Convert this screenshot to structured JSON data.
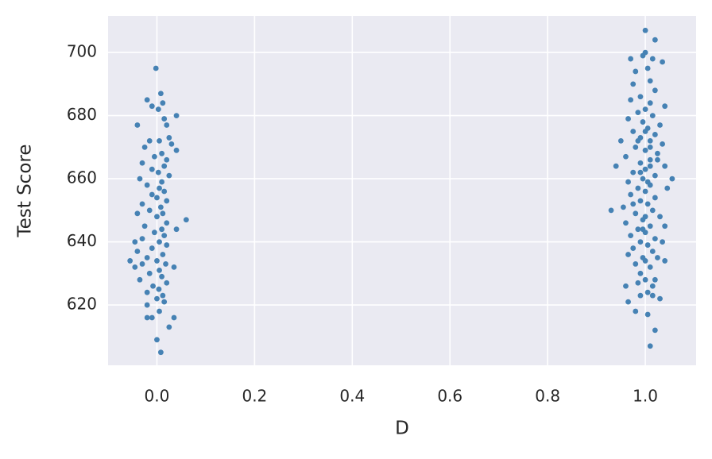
{
  "chart_data": {
    "type": "scatter",
    "xlabel": "D",
    "ylabel": "Test Score",
    "color": "#4682b4",
    "grid": true,
    "xlim": [
      -0.1,
      1.104
    ],
    "ylim": [
      600.9,
      711.6
    ],
    "xticks": [
      {
        "value": 0,
        "label": "0.0"
      },
      0.2,
      0.4,
      0.6,
      0.8,
      {
        "value": 1,
        "label": "1.0"
      }
    ],
    "yticks": [
      620,
      640,
      660,
      680,
      700
    ],
    "x": [
      -0.002,
      0.008,
      -0.02,
      -0.01,
      0.012,
      0.003,
      -0.04,
      0.04,
      0.015,
      0.02,
      0.025,
      -0.015,
      0.005,
      0.03,
      -0.025,
      0.04,
      0.01,
      -0.005,
      0.02,
      -0.03,
      0.015,
      -0.01,
      0.003,
      0.025,
      -0.035,
      0.01,
      -0.02,
      0.005,
      0.015,
      -0.01,
      0.0,
      0.02,
      -0.03,
      0.008,
      -0.015,
      0.012,
      -0.04,
      0.0,
      0.06,
      0.02,
      -0.025,
      0.01,
      0.04,
      -0.005,
      0.015,
      -0.03,
      -0.045,
      0.005,
      0.02,
      -0.01,
      -0.04,
      0.012,
      -0.02,
      0.0,
      -0.055,
      0.018,
      -0.03,
      0.035,
      -0.045,
      0.005,
      -0.015,
      0.01,
      -0.035,
      0.02,
      -0.008,
      0.004,
      -0.02,
      0.012,
      0.0,
      0.015,
      -0.02,
      0.005,
      -0.02,
      -0.01,
      0.035,
      0.025,
      0.0,
      0.008,
      1.0,
      1.02,
      0.995,
      0.97,
      1.0,
      1.015,
      1.035,
      1.005,
      0.98,
      1.01,
      0.975,
      1.02,
      0.99,
      0.97,
      1.01,
      1.04,
      1.0,
      0.985,
      1.015,
      0.965,
      0.995,
      1.03,
      1.005,
      0.975,
      1.02,
      0.99,
      0.95,
      1.01,
      1.035,
      0.98,
      1.0,
      1.025,
      0.96,
      1.01,
      0.99,
      1.04,
      0.94,
      1.0,
      0.975,
      1.02,
      0.995,
      1.055,
      0.965,
      1.01,
      0.985,
      1.045,
      1.0,
      0.97,
      1.02,
      0.99,
      1.005,
      0.955,
      0.93,
      1.015,
      0.98,
      1.03,
      0.995,
      0.96,
      1.01,
      1.04,
      0.985,
      1.0,
      0.97,
      1.02,
      0.99,
      1.035,
      1.005,
      0.975,
      1.015,
      0.965,
      0.995,
      1.025,
      1.0,
      0.98,
      1.04,
      1.01,
      0.99,
      1.0,
      1.02,
      1.015,
      0.96,
      0.985,
      1.005,
      0.99,
      1.03,
      1.015,
      0.965,
      0.98,
      1.005,
      1.02,
      1.01,
      1.0,
      1.01,
      0.99,
      1.005,
      1.0,
      0.995,
      1.01,
      0.975,
      1.025,
      0.985
    ],
    "values": [
      695,
      687,
      685,
      683,
      684,
      682,
      677,
      680,
      679,
      677,
      673,
      672,
      672,
      671,
      670,
      669,
      668,
      667,
      666,
      665,
      664,
      663,
      662,
      661,
      660,
      659,
      658,
      657,
      656,
      655,
      654,
      653,
      652,
      651,
      650,
      649,
      649,
      648,
      647,
      646,
      645,
      644,
      644,
      643,
      642,
      641,
      640,
      640,
      639,
      638,
      637,
      636,
      635,
      634,
      634,
      633,
      633,
      632,
      632,
      631,
      630,
      629,
      628,
      627,
      626,
      625,
      624,
      623,
      622,
      621,
      620,
      618,
      616,
      616,
      616,
      613,
      609,
      605,
      707,
      704,
      699,
      698,
      700,
      698,
      697,
      695,
      694,
      691,
      690,
      688,
      686,
      685,
      684,
      683,
      682,
      681,
      680,
      679,
      678,
      677,
      676,
      675,
      674,
      673,
      672,
      672,
      671,
      670,
      669,
      668,
      667,
      666,
      665,
      664,
      664,
      663,
      662,
      661,
      660,
      660,
      659,
      658,
      657,
      657,
      656,
      655,
      654,
      653,
      652,
      651,
      650,
      650,
      649,
      648,
      647,
      646,
      645,
      645,
      644,
      643,
      642,
      641,
      640,
      640,
      639,
      638,
      637,
      636,
      635,
      635,
      634,
      633,
      634,
      632,
      630,
      628,
      628,
      626,
      626,
      627,
      624,
      623,
      622,
      623,
      621,
      618,
      617,
      612,
      607,
      675,
      670,
      662,
      659,
      648,
      644,
      664,
      652,
      666,
      672
    ]
  }
}
